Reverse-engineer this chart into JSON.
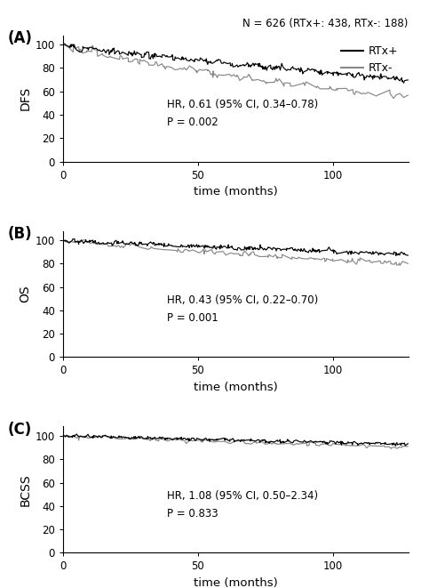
{
  "title_note": "N = 626 (RTx+: 438, RTx-: 188)",
  "panels": [
    {
      "label": "(A)",
      "ylabel": "DFS",
      "annotation_line1": "HR, 0.61 (95% CI, 0.34–0.78)",
      "annotation_line2": "P = 0.002",
      "plus_params": {
        "start": 100,
        "end": 70,
        "noise": 2.0,
        "n": 400,
        "seed": 1,
        "power": 0.85
      },
      "minus_params": {
        "start": 100,
        "end": 55,
        "noise": 2.5,
        "n": 180,
        "seed": 2,
        "power": 0.75
      }
    },
    {
      "label": "(B)",
      "ylabel": "OS",
      "annotation_line1": "HR, 0.43 (95% CI, 0.22–0.70)",
      "annotation_line2": "P = 0.001",
      "plus_params": {
        "start": 100,
        "end": 88,
        "noise": 1.5,
        "n": 420,
        "seed": 3,
        "power": 0.9
      },
      "minus_params": {
        "start": 100,
        "end": 79,
        "noise": 1.8,
        "n": 180,
        "seed": 4,
        "power": 0.85
      }
    },
    {
      "label": "(C)",
      "ylabel": "BCSS",
      "annotation_line1": "HR, 1.08 (95% CI, 0.50–2.34)",
      "annotation_line2": "P = 0.833",
      "plus_params": {
        "start": 100,
        "end": 93,
        "noise": 1.2,
        "n": 430,
        "seed": 5,
        "power": 0.95
      },
      "minus_params": {
        "start": 100,
        "end": 90,
        "noise": 1.4,
        "n": 170,
        "seed": 6,
        "power": 0.9
      }
    }
  ],
  "xlim": [
    0,
    128
  ],
  "ylim": [
    0,
    108
  ],
  "xticks": [
    0,
    50,
    100
  ],
  "yticks": [
    0,
    20,
    40,
    60,
    80,
    100
  ],
  "xlabel": "time (months)",
  "color_plus": "#000000",
  "color_minus": "#888888",
  "legend_labels": [
    "RTx+",
    "RTx-"
  ],
  "figsize": [
    4.74,
    6.61
  ],
  "dpi": 100,
  "ann_x": 0.3,
  "ann_y_A": 0.38,
  "ann_y_BC": 0.38
}
